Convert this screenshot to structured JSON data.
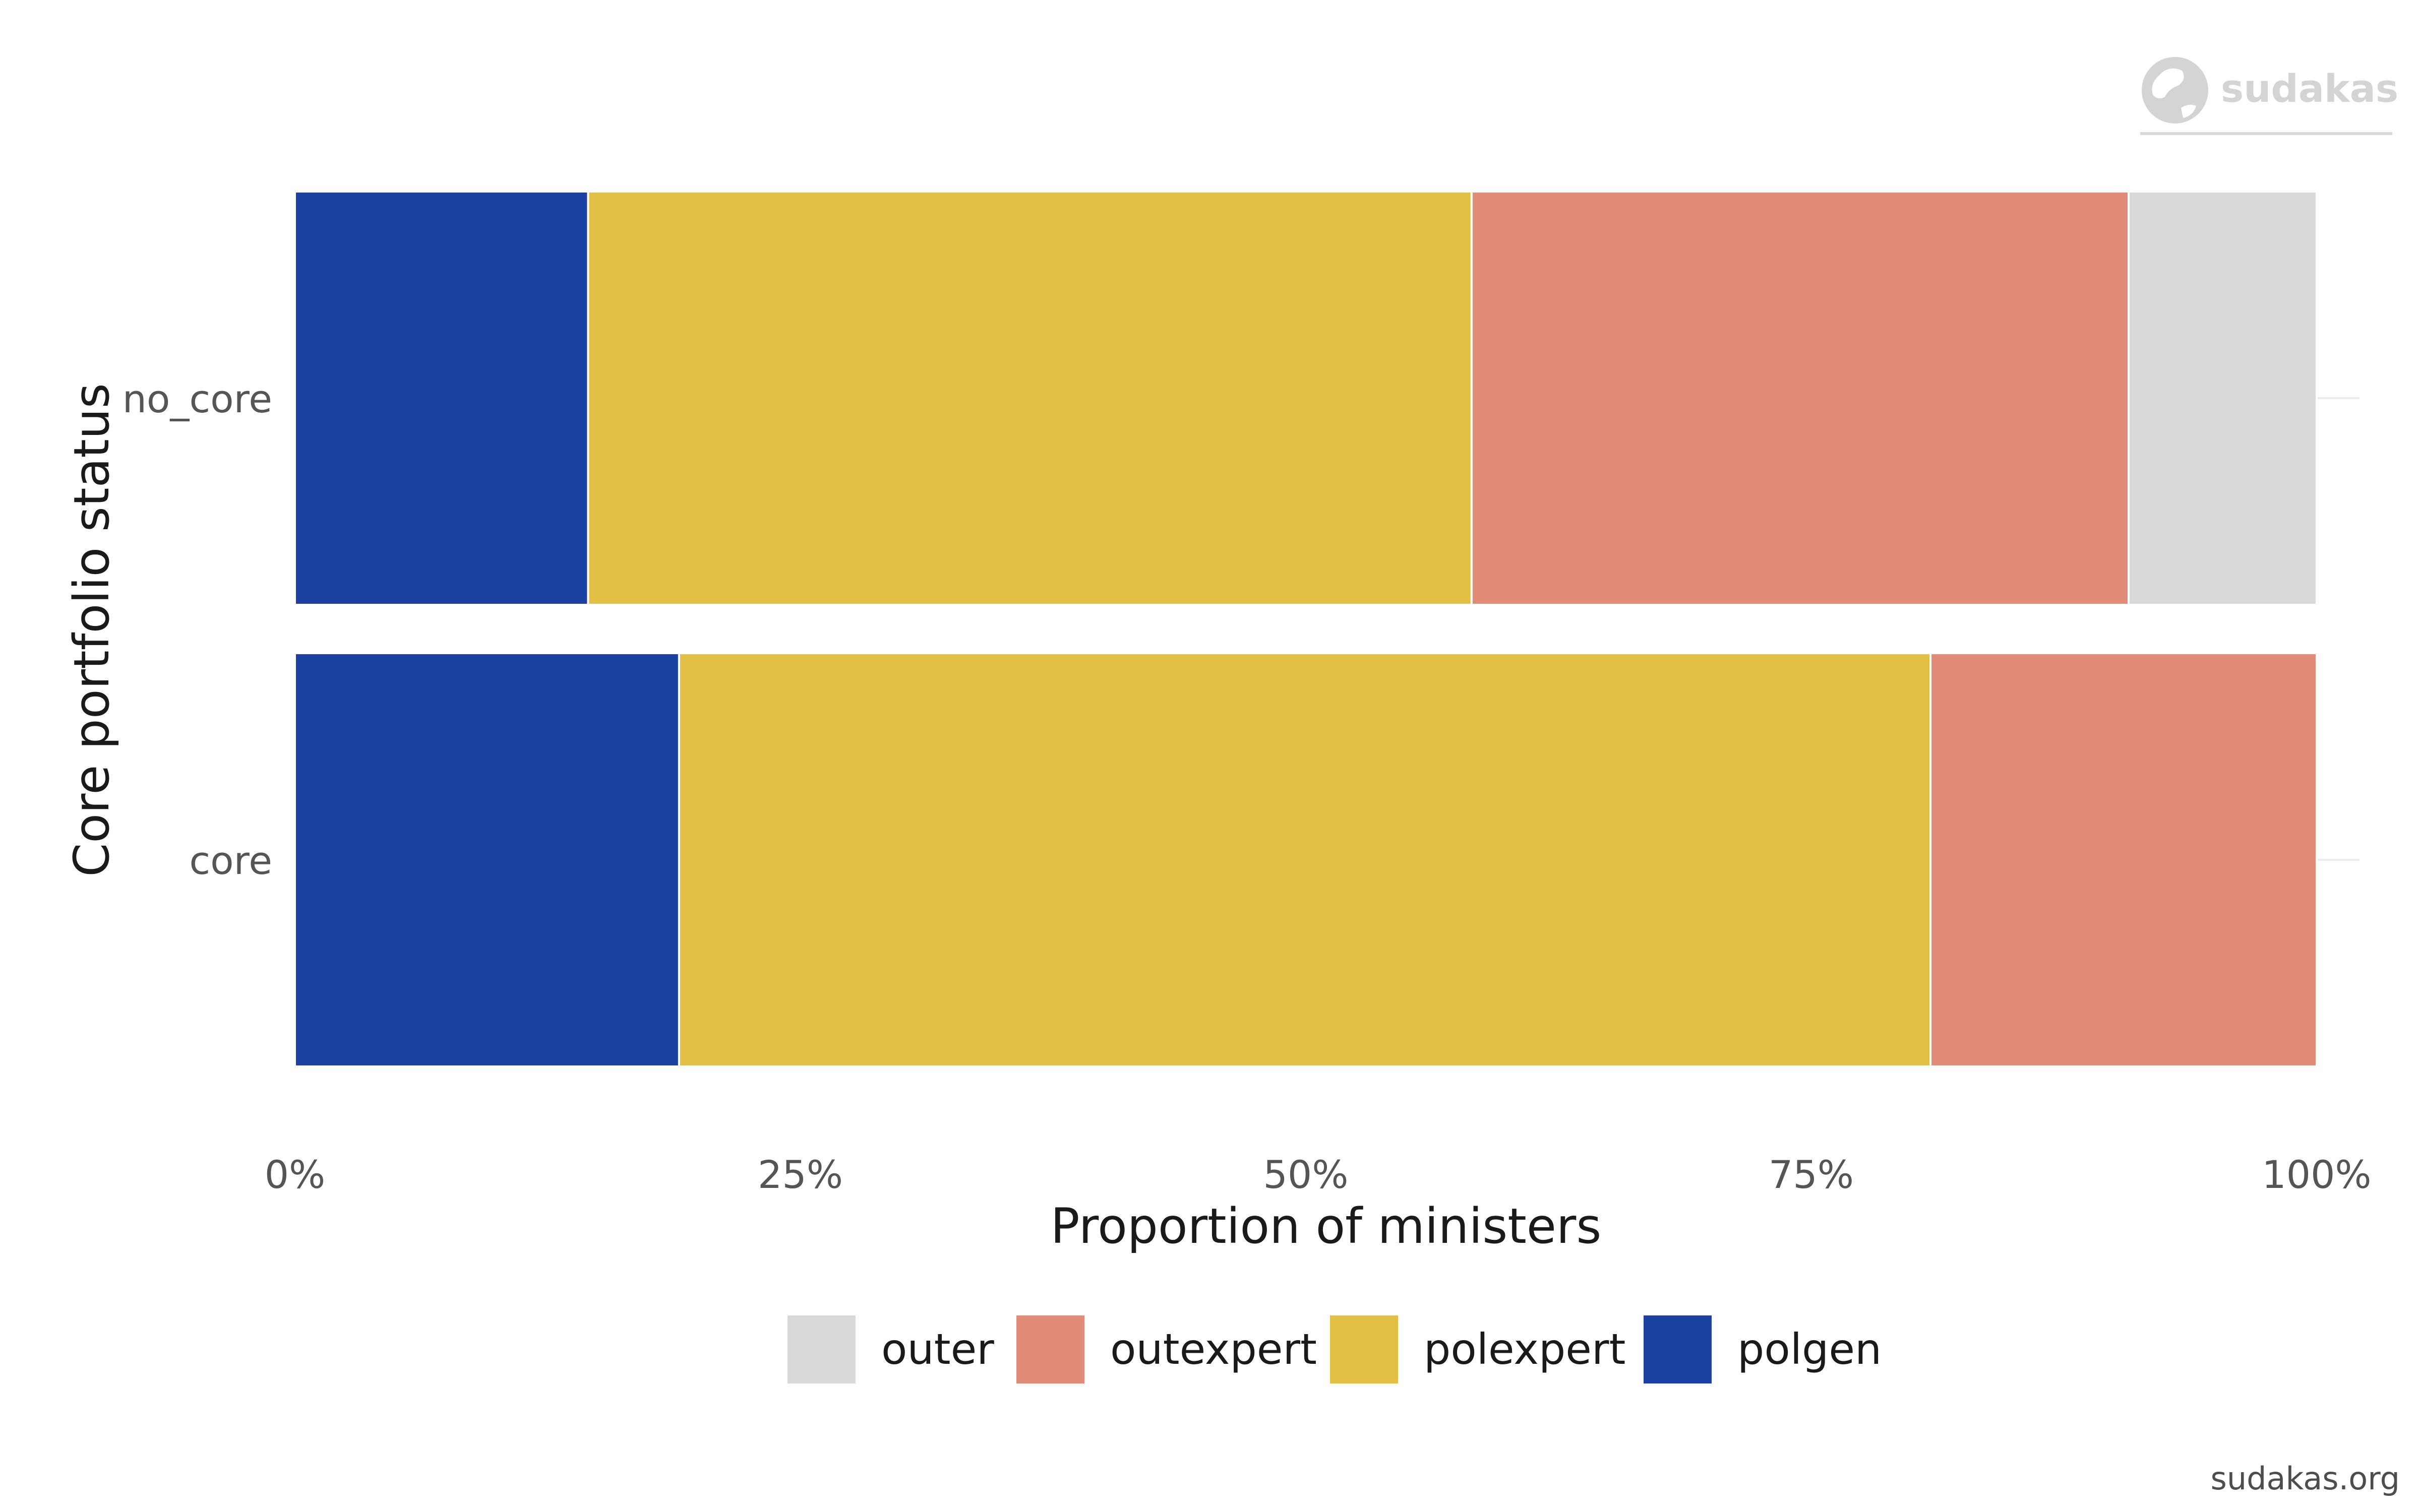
{
  "chart_data": {
    "type": "bar",
    "orientation": "horizontal",
    "stacked": true,
    "normalized": true,
    "categories": [
      "no_core",
      "core"
    ],
    "series": [
      {
        "name": "polgen",
        "color": "#1c41a3",
        "values": [
          0.145,
          0.19
        ]
      },
      {
        "name": "polexpert",
        "color": "#e1c045",
        "values": [
          0.437,
          0.619
        ]
      },
      {
        "name": "outexpert",
        "color": "#e08c78",
        "values": [
          0.325,
          0.191
        ]
      },
      {
        "name": "outer",
        "color": "#d9d9d7",
        "values": [
          0.093,
          0.0
        ]
      }
    ],
    "xlabel": "Proportion of ministers",
    "ylabel": "Core portfolio status",
    "xlim": [
      0,
      1
    ],
    "xticks": [
      0,
      0.25,
      0.5,
      0.75,
      1.0
    ],
    "xtick_labels": [
      "0%",
      "25%",
      "50%",
      "75%",
      "100%"
    ],
    "legend": {
      "placement": "bottom",
      "order": [
        "outer",
        "outexpert",
        "polexpert",
        "polgen"
      ]
    },
    "grid": false
  },
  "branding": {
    "logo_text": "sudakas",
    "logo_icon": "globe-icon",
    "footer_url": "sudakas.org"
  }
}
